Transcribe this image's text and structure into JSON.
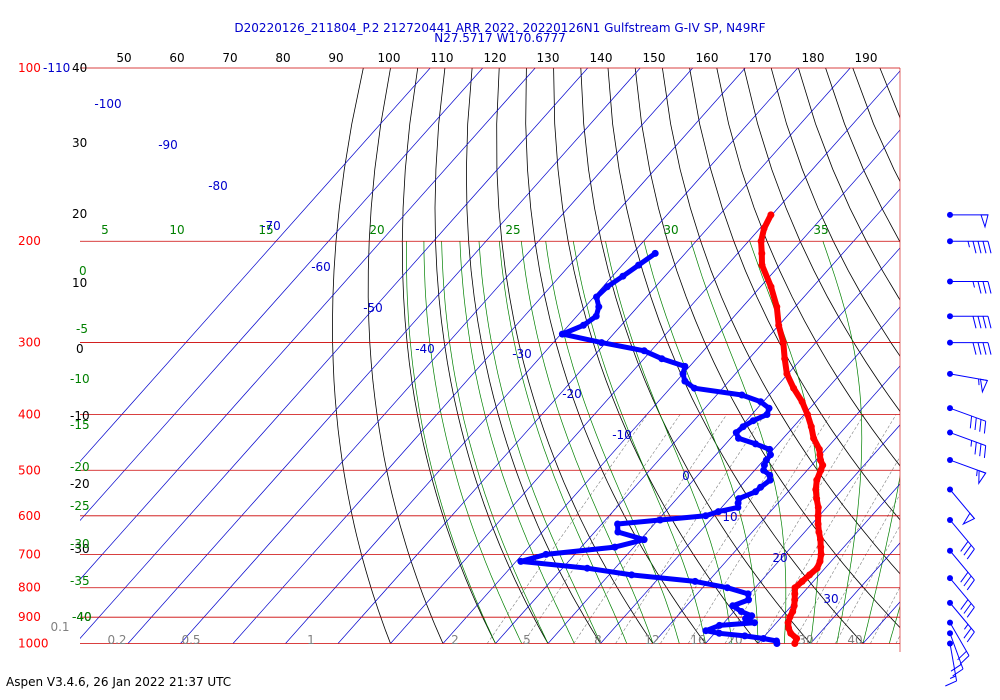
{
  "chart_data": {
    "type": "scatter",
    "subtitle_lines": [
      "D20220126_211804_P.2 212720441 ARR 2022, 20220126N1 Gulfstream G-IV SP, N49RF",
      "N27.5717 W170.6777"
    ],
    "footer": "Aspen V3.4.6, 26 Jan 2022  21:37 UTC",
    "pressure_levels": [
      100,
      200,
      300,
      400,
      500,
      600,
      700,
      800,
      900,
      1000
    ],
    "top_label_suffix": "-110",
    "top_axis_ticks": [
      50,
      60,
      70,
      80,
      90,
      100,
      110,
      120,
      130,
      140,
      150,
      160,
      170,
      180,
      190
    ],
    "left_scale": [
      {
        "label": "40",
        "color": "#000000"
      },
      {
        "label": "30",
        "color": "#000000"
      },
      {
        "label": "20",
        "color": "#000000"
      },
      {
        "label": "10",
        "color": "#000000"
      },
      {
        "label": "0",
        "color": "#000000"
      },
      {
        "label": "-10",
        "color": "#000000"
      },
      {
        "label": "-20",
        "color": "#000000"
      },
      {
        "label": "-30",
        "color": "#000000"
      },
      {
        "label": "-40",
        "color": "#000000"
      },
      {
        "label": "0",
        "color": "#008000"
      },
      {
        "label": "-5",
        "color": "#008000"
      },
      {
        "label": "-10",
        "color": "#008000"
      },
      {
        "label": "-15",
        "color": "#008000"
      },
      {
        "label": "-20",
        "color": "#008000"
      },
      {
        "label": "-25",
        "color": "#008000"
      },
      {
        "label": "-30",
        "color": "#008000"
      },
      {
        "label": "-35",
        "color": "#008000"
      },
      {
        "label": "-40",
        "color": "#008000"
      }
    ],
    "adiabat_labels": [
      "5",
      "10",
      "15",
      "20",
      "25",
      "30",
      "35"
    ],
    "isotherm_labels": [
      "-100",
      "-90",
      "-80",
      "-70",
      "-60",
      "-50",
      "-40",
      "-30",
      "-20",
      "-10",
      "0",
      "10",
      "20",
      "30"
    ],
    "mixing_ratio_labels": [
      "0.1",
      "0.2",
      "0.5",
      "1",
      "2",
      "5",
      "8",
      "12",
      "16",
      "20",
      "30",
      "40"
    ],
    "temperature_series": {
      "color": "#ff0000",
      "points": [
        [
          1000,
          17
        ],
        [
          980,
          16.5
        ],
        [
          960,
          14.5
        ],
        [
          940,
          13.2
        ],
        [
          920,
          12.2
        ],
        [
          900,
          11.6
        ],
        [
          880,
          11.2
        ],
        [
          860,
          10.5
        ],
        [
          840,
          9.6
        ],
        [
          820,
          8.6
        ],
        [
          800,
          7.6
        ],
        [
          780,
          7.9
        ],
        [
          760,
          8.2
        ],
        [
          740,
          8.5
        ],
        [
          720,
          7.9
        ],
        [
          700,
          6.9
        ],
        [
          680,
          5.6
        ],
        [
          660,
          4.3
        ],
        [
          640,
          2.7
        ],
        [
          620,
          1.2
        ],
        [
          600,
          -0.2
        ],
        [
          580,
          -1.6
        ],
        [
          560,
          -3.4
        ],
        [
          540,
          -5.1
        ],
        [
          520,
          -6.5
        ],
        [
          500,
          -7.4
        ],
        [
          490,
          -7.9
        ],
        [
          480,
          -9.2
        ],
        [
          470,
          -10.2
        ],
        [
          460,
          -11.2
        ],
        [
          440,
          -14.2
        ],
        [
          420,
          -16.6
        ],
        [
          400,
          -19.4
        ],
        [
          380,
          -22.6
        ],
        [
          360,
          -26.5
        ],
        [
          340,
          -30.2
        ],
        [
          320,
          -33.2
        ],
        [
          300,
          -36.2
        ],
        [
          280,
          -40.0
        ],
        [
          260,
          -43.5
        ],
        [
          240,
          -48.0
        ],
        [
          220,
          -53.4
        ],
        [
          210,
          -55.4
        ],
        [
          200,
          -57.6
        ],
        [
          190,
          -59.2
        ],
        [
          180,
          -60.2
        ]
      ]
    },
    "dewpoint_series": {
      "color": "#0000ff",
      "points": [
        [
          1000,
          13.6
        ],
        [
          990,
          13.1
        ],
        [
          980,
          10.2
        ],
        [
          970,
          6.2
        ],
        [
          960,
          0.9
        ],
        [
          950,
          -2.1
        ],
        [
          930,
          -0.4
        ],
        [
          920,
          5.8
        ],
        [
          905,
          3.4
        ],
        [
          895,
          4.1
        ],
        [
          880,
          1.4
        ],
        [
          860,
          -1.2
        ],
        [
          840,
          0.8
        ],
        [
          820,
          -0.3
        ],
        [
          800,
          -5.3
        ],
        [
          780,
          -12.5
        ],
        [
          760,
          -25.7
        ],
        [
          740,
          -35.3
        ],
        [
          720,
          -49.1
        ],
        [
          700,
          -45.5
        ],
        [
          680,
          -33.6
        ],
        [
          660,
          -29.3
        ],
        [
          640,
          -35.6
        ],
        [
          620,
          -37.0
        ],
        [
          610,
          -29.6
        ],
        [
          600,
          -21.6
        ],
        [
          590,
          -19.9
        ],
        [
          580,
          -16.9
        ],
        [
          570,
          -17.6
        ],
        [
          560,
          -18.2
        ],
        [
          545,
          -16.2
        ],
        [
          535,
          -16.0
        ],
        [
          520,
          -15.4
        ],
        [
          510,
          -16.3
        ],
        [
          500,
          -18.3
        ],
        [
          490,
          -19.0
        ],
        [
          480,
          -19.5
        ],
        [
          470,
          -19.6
        ],
        [
          460,
          -20.7
        ],
        [
          450,
          -24.3
        ],
        [
          440,
          -28.5
        ],
        [
          430,
          -29.9
        ],
        [
          420,
          -29.6
        ],
        [
          410,
          -28.7
        ],
        [
          400,
          -27.1
        ],
        [
          390,
          -27.8
        ],
        [
          380,
          -30.5
        ],
        [
          370,
          -35.2
        ],
        [
          360,
          -45.4
        ],
        [
          350,
          -48.4
        ],
        [
          340,
          -50.0
        ],
        [
          330,
          -50.9
        ],
        [
          320,
          -56.6
        ],
        [
          310,
          -61.3
        ],
        [
          300,
          -70.8
        ],
        [
          290,
          -79.7
        ],
        [
          280,
          -77.2
        ],
        [
          270,
          -76.3
        ],
        [
          260,
          -77.4
        ],
        [
          250,
          -79.5
        ],
        [
          240,
          -79.2
        ],
        [
          230,
          -78.0
        ],
        [
          220,
          -76.9
        ],
        [
          210,
          -75.7
        ]
      ]
    },
    "wind_barbs": [
      {
        "p": 180,
        "speed": 50,
        "dir": 270
      },
      {
        "p": 200,
        "speed": 45,
        "dir": 270
      },
      {
        "p": 235,
        "speed": 35,
        "dir": 270
      },
      {
        "p": 270,
        "speed": 40,
        "dir": 270
      },
      {
        "p": 300,
        "speed": 40,
        "dir": 270
      },
      {
        "p": 340,
        "speed": 55,
        "dir": 280
      },
      {
        "p": 390,
        "speed": 40,
        "dir": 290
      },
      {
        "p": 430,
        "speed": 35,
        "dir": 290
      },
      {
        "p": 480,
        "speed": 55,
        "dir": 290
      },
      {
        "p": 540,
        "speed": 50,
        "dir": 320
      },
      {
        "p": 610,
        "speed": 30,
        "dir": 320
      },
      {
        "p": 690,
        "speed": 30,
        "dir": 320
      },
      {
        "p": 770,
        "speed": 30,
        "dir": 320
      },
      {
        "p": 850,
        "speed": 25,
        "dir": 320
      },
      {
        "p": 920,
        "speed": 20,
        "dir": 330
      },
      {
        "p": 960,
        "speed": 20,
        "dir": 340
      },
      {
        "p": 1000,
        "speed": 15,
        "dir": 350
      }
    ]
  }
}
